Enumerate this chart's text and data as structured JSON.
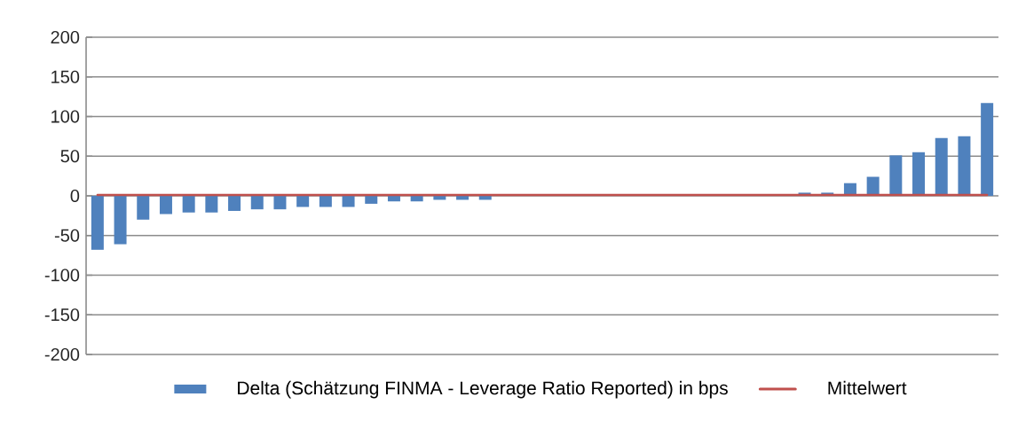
{
  "chart_data": {
    "type": "bar",
    "categories": [
      null,
      null,
      null,
      null,
      null,
      null,
      null,
      null,
      null,
      null,
      null,
      null,
      null,
      null,
      null,
      null,
      null,
      null,
      null,
      null,
      null,
      null,
      null,
      null,
      null,
      null,
      null,
      null,
      null,
      null,
      null,
      null,
      null,
      null,
      null,
      null,
      null,
      null,
      null,
      null
    ],
    "series": [
      {
        "name": "Delta (Schätzung FINMA - Leverage Ratio Reported) in bps",
        "color": "#4f81bd",
        "values": [
          -68,
          -61,
          -30,
          -23,
          -21,
          -21,
          -19,
          -17,
          -17,
          -14,
          -14,
          -14,
          -10,
          -7,
          -7,
          -5,
          -5,
          -5,
          0,
          0,
          0,
          0,
          0,
          0,
          0,
          0,
          0,
          0,
          0,
          0,
          0,
          4,
          4,
          16,
          24,
          51,
          55,
          73,
          75,
          117
        ]
      },
      {
        "name": "Mittelwert",
        "type": "line",
        "color": "#c0504d",
        "values": [
          1,
          1,
          1,
          1,
          1,
          1,
          1,
          1,
          1,
          1,
          1,
          1,
          1,
          1,
          1,
          1,
          1,
          1,
          1,
          1,
          1,
          1,
          1,
          1,
          1,
          1,
          1,
          1,
          1,
          1,
          1,
          1,
          1,
          1,
          1,
          1,
          1,
          1,
          1,
          1
        ]
      }
    ],
    "ylim": [
      -200,
      200
    ],
    "yticks": [
      -200,
      -150,
      -100,
      -50,
      0,
      50,
      100,
      150,
      200
    ],
    "grid": "y",
    "legend": "bottom"
  }
}
